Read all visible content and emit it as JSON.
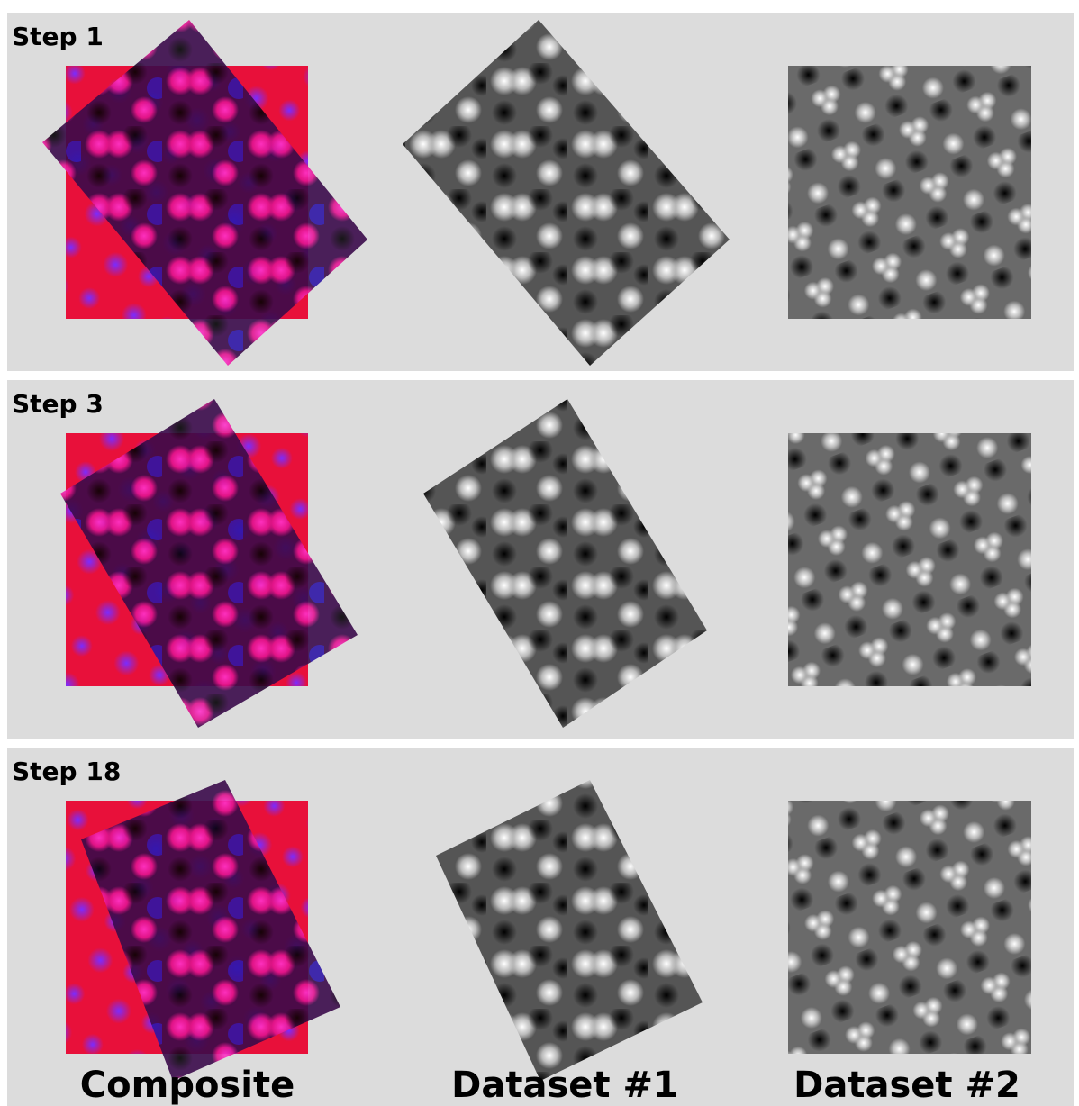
{
  "panels": [
    {
      "label": "Step 1"
    },
    {
      "label": "Step 3"
    },
    {
      "label": "Step 18"
    }
  ],
  "columns": [
    "Composite",
    "Dataset #1",
    "Dataset #2"
  ]
}
